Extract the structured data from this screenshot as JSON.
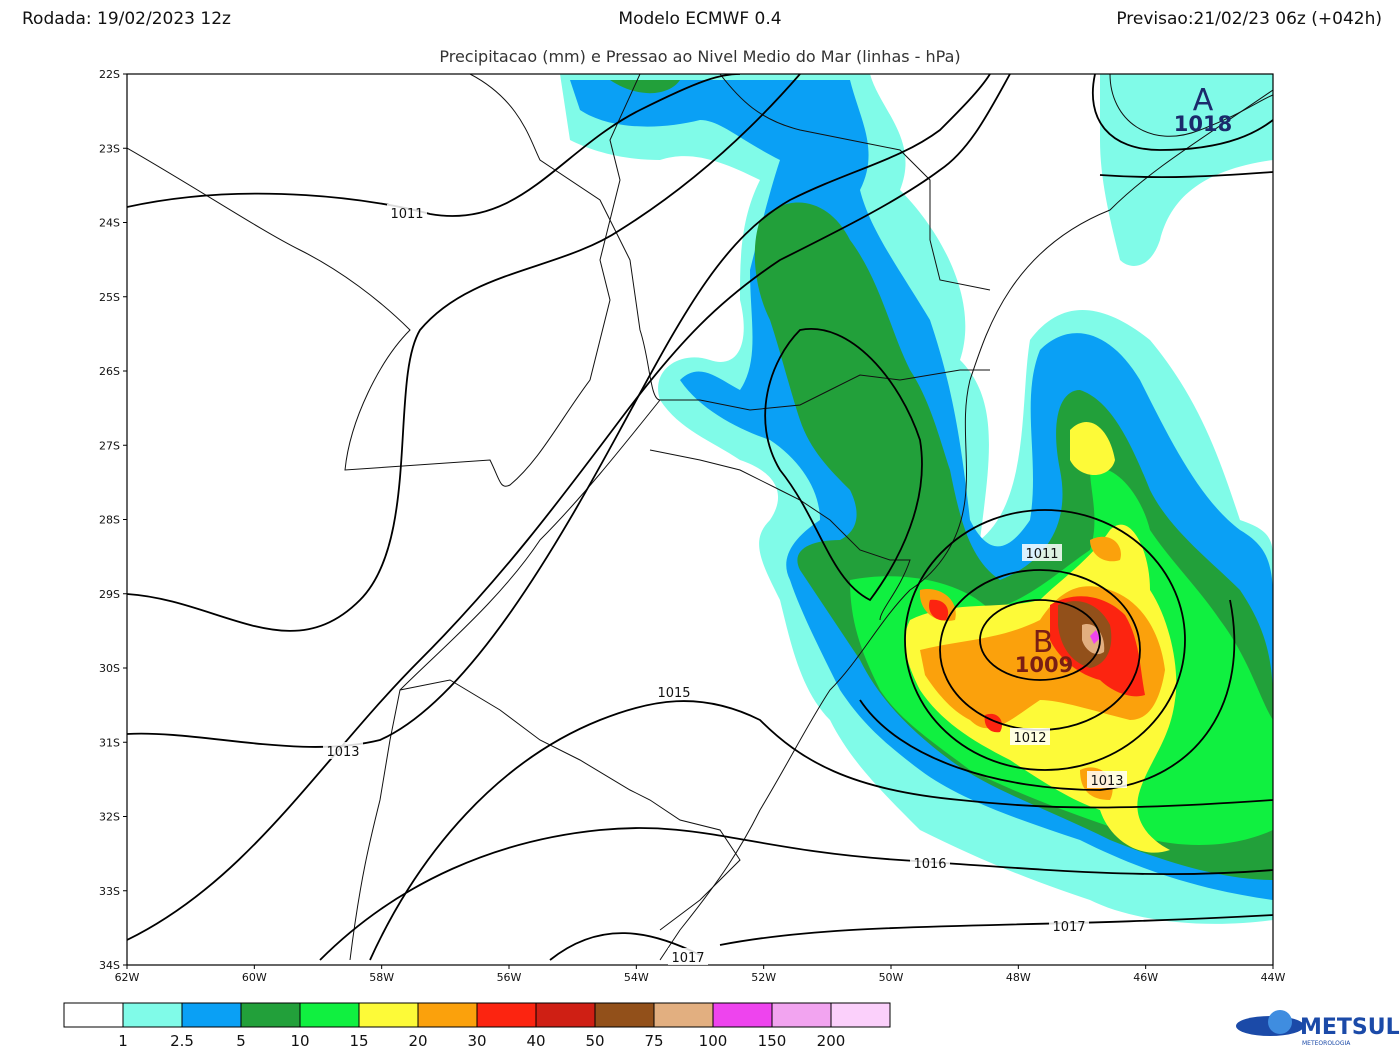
{
  "header": {
    "left": "Rodada: 19/02/2023 12z",
    "center": "Modelo ECMWF 0.4",
    "right": "Previsao:21/02/23 06z (+042h)",
    "subtitle": "Precipitacao (mm) e Pressao ao Nivel Medio do Mar (linhas - hPa)"
  },
  "map": {
    "lat_labels": [
      "22S",
      "23S",
      "24S",
      "25S",
      "26S",
      "27S",
      "28S",
      "29S",
      "30S",
      "31S",
      "32S",
      "33S",
      "34S"
    ],
    "lon_labels": [
      "62W",
      "60W",
      "58W",
      "56W",
      "54W",
      "52W",
      "50W",
      "48W",
      "46W",
      "44W"
    ],
    "isobar_labels": [
      1011,
      1013,
      1015,
      1011,
      1012,
      1013,
      1016,
      1017,
      1017
    ],
    "centers": [
      {
        "letter": "B",
        "value": 1009,
        "color": "#7a1e14"
      },
      {
        "letter": "A",
        "value": 1018,
        "color": "#1b2a6b"
      }
    ]
  },
  "colorbar": {
    "colors": [
      "#ffffff",
      "#80fbe8",
      "#0aa0f5",
      "#22a03a",
      "#10f040",
      "#fdfa38",
      "#fba10c",
      "#fc2410",
      "#cf1f14",
      "#92501a",
      "#e2af80",
      "#ee44ee",
      "#f2a4f0",
      "#fbd0fb"
    ],
    "labels": [
      1,
      2.5,
      5,
      10,
      15,
      20,
      30,
      40,
      50,
      75,
      100,
      150,
      200
    ]
  },
  "logo": {
    "name": "METSUL",
    "tagline": "METEOROLOGIA"
  }
}
